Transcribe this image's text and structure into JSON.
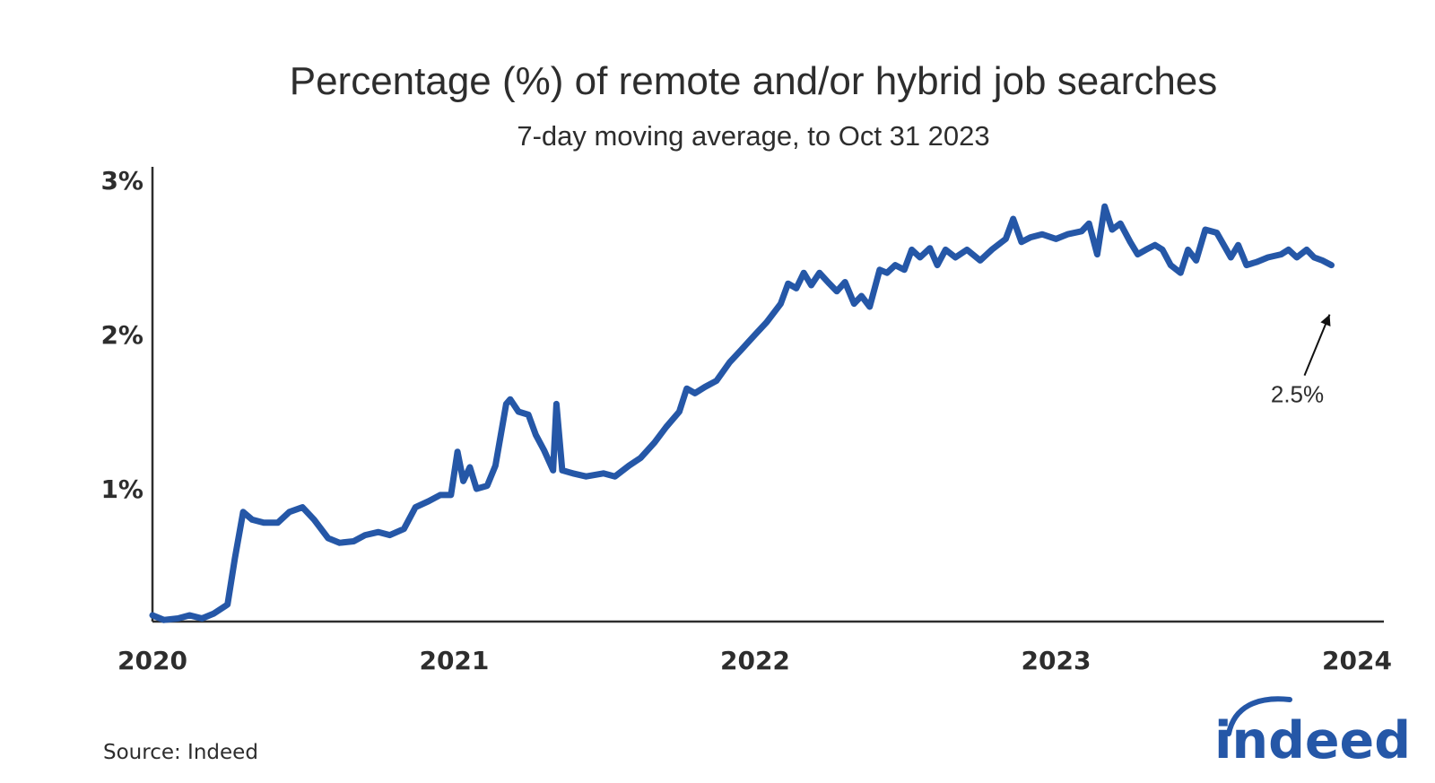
{
  "chart_data": {
    "type": "line",
    "title": "Percentage (%) of remote and/or hybrid job searches",
    "subtitle": "7-day moving average, to Oct 31 2023",
    "xlabel": "",
    "ylabel": "",
    "x_ticks": [
      "2020",
      "2021",
      "2022",
      "2023",
      "2024"
    ],
    "y_ticks": [
      {
        "value": 1,
        "label": "1%"
      },
      {
        "value": 2,
        "label": "2%"
      },
      {
        "value": 3,
        "label": "3%"
      }
    ],
    "ylim": [
      0,
      3
    ],
    "xlim": [
      "2020-01-01",
      "2024-01-01"
    ],
    "grid": false,
    "series": [
      {
        "color": "#2557a7",
        "points": [
          [
            "2020-01-01",
            0.18
          ],
          [
            "2020-01-15",
            0.15
          ],
          [
            "2020-02-01",
            0.16
          ],
          [
            "2020-02-15",
            0.18
          ],
          [
            "2020-03-01",
            0.16
          ],
          [
            "2020-03-15",
            0.19
          ],
          [
            "2020-04-01",
            0.25
          ],
          [
            "2020-04-10",
            0.55
          ],
          [
            "2020-04-20",
            0.85
          ],
          [
            "2020-05-01",
            0.8
          ],
          [
            "2020-05-15",
            0.78
          ],
          [
            "2020-06-01",
            0.78
          ],
          [
            "2020-06-15",
            0.85
          ],
          [
            "2020-07-01",
            0.88
          ],
          [
            "2020-07-15",
            0.8
          ],
          [
            "2020-08-01",
            0.68
          ],
          [
            "2020-08-15",
            0.65
          ],
          [
            "2020-09-01",
            0.66
          ],
          [
            "2020-09-15",
            0.7
          ],
          [
            "2020-10-01",
            0.72
          ],
          [
            "2020-10-15",
            0.7
          ],
          [
            "2020-11-01",
            0.74
          ],
          [
            "2020-11-15",
            0.88
          ],
          [
            "2020-12-01",
            0.92
          ],
          [
            "2020-12-15",
            0.96
          ],
          [
            "2020-12-28",
            0.96
          ],
          [
            "2021-01-05",
            1.24
          ],
          [
            "2021-01-12",
            1.05
          ],
          [
            "2021-01-20",
            1.14
          ],
          [
            "2021-01-28",
            1.0
          ],
          [
            "2021-02-10",
            1.02
          ],
          [
            "2021-02-20",
            1.15
          ],
          [
            "2021-03-05",
            1.55
          ],
          [
            "2021-03-10",
            1.58
          ],
          [
            "2021-03-20",
            1.5
          ],
          [
            "2021-04-01",
            1.48
          ],
          [
            "2021-04-10",
            1.35
          ],
          [
            "2021-04-20",
            1.25
          ],
          [
            "2021-05-01",
            1.12
          ],
          [
            "2021-05-05",
            1.55
          ],
          [
            "2021-05-12",
            1.12
          ],
          [
            "2021-05-25",
            1.1
          ],
          [
            "2021-06-10",
            1.08
          ],
          [
            "2021-07-01",
            1.1
          ],
          [
            "2021-07-15",
            1.08
          ],
          [
            "2021-08-01",
            1.15
          ],
          [
            "2021-08-15",
            1.2
          ],
          [
            "2021-09-01",
            1.3
          ],
          [
            "2021-09-15",
            1.4
          ],
          [
            "2021-10-01",
            1.5
          ],
          [
            "2021-10-10",
            1.65
          ],
          [
            "2021-10-20",
            1.62
          ],
          [
            "2021-11-01",
            1.66
          ],
          [
            "2021-11-15",
            1.7
          ],
          [
            "2021-12-01",
            1.82
          ],
          [
            "2021-12-15",
            1.9
          ],
          [
            "2022-01-01",
            2.0
          ],
          [
            "2022-01-15",
            2.08
          ],
          [
            "2022-02-01",
            2.2
          ],
          [
            "2022-02-10",
            2.33
          ],
          [
            "2022-02-20",
            2.3
          ],
          [
            "2022-03-01",
            2.4
          ],
          [
            "2022-03-10",
            2.32
          ],
          [
            "2022-03-20",
            2.4
          ],
          [
            "2022-04-01",
            2.33
          ],
          [
            "2022-04-10",
            2.28
          ],
          [
            "2022-04-20",
            2.34
          ],
          [
            "2022-05-01",
            2.2
          ],
          [
            "2022-05-10",
            2.25
          ],
          [
            "2022-05-20",
            2.18
          ],
          [
            "2022-06-01",
            2.42
          ],
          [
            "2022-06-10",
            2.4
          ],
          [
            "2022-06-20",
            2.45
          ],
          [
            "2022-07-01",
            2.42
          ],
          [
            "2022-07-10",
            2.55
          ],
          [
            "2022-07-20",
            2.5
          ],
          [
            "2022-08-01",
            2.56
          ],
          [
            "2022-08-10",
            2.45
          ],
          [
            "2022-08-20",
            2.55
          ],
          [
            "2022-09-01",
            2.5
          ],
          [
            "2022-09-15",
            2.55
          ],
          [
            "2022-10-01",
            2.48
          ],
          [
            "2022-10-15",
            2.55
          ],
          [
            "2022-11-01",
            2.62
          ],
          [
            "2022-11-10",
            2.75
          ],
          [
            "2022-11-20",
            2.6
          ],
          [
            "2022-12-01",
            2.63
          ],
          [
            "2022-12-15",
            2.65
          ],
          [
            "2023-01-01",
            2.62
          ],
          [
            "2023-01-15",
            2.65
          ],
          [
            "2023-02-01",
            2.67
          ],
          [
            "2023-02-10",
            2.72
          ],
          [
            "2023-02-20",
            2.52
          ],
          [
            "2023-03-01",
            2.83
          ],
          [
            "2023-03-10",
            2.68
          ],
          [
            "2023-03-20",
            2.72
          ],
          [
            "2023-04-01",
            2.6
          ],
          [
            "2023-04-10",
            2.52
          ],
          [
            "2023-04-20",
            2.55
          ],
          [
            "2023-05-01",
            2.58
          ],
          [
            "2023-05-10",
            2.55
          ],
          [
            "2023-05-20",
            2.45
          ],
          [
            "2023-06-01",
            2.4
          ],
          [
            "2023-06-10",
            2.55
          ],
          [
            "2023-06-20",
            2.48
          ],
          [
            "2023-07-01",
            2.68
          ],
          [
            "2023-07-15",
            2.66
          ],
          [
            "2023-08-01",
            2.5
          ],
          [
            "2023-08-10",
            2.58
          ],
          [
            "2023-08-20",
            2.45
          ],
          [
            "2023-09-01",
            2.47
          ],
          [
            "2023-09-15",
            2.5
          ],
          [
            "2023-10-01",
            2.52
          ],
          [
            "2023-10-10",
            2.55
          ],
          [
            "2023-10-20",
            2.5
          ],
          [
            "2023-11-01",
            2.55
          ],
          [
            "2023-11-10",
            2.5
          ],
          [
            "2023-11-20",
            2.48
          ],
          [
            "2023-12-01",
            2.45
          ]
        ]
      }
    ],
    "annotation": {
      "text": "2.5%",
      "points_to": [
        "2023-12-01",
        2.45
      ]
    }
  },
  "source": "Source: Indeed",
  "logo": "indeed",
  "colors": {
    "line": "#2557a7",
    "axis": "#2d2d2d",
    "brand": "#2557a7"
  }
}
